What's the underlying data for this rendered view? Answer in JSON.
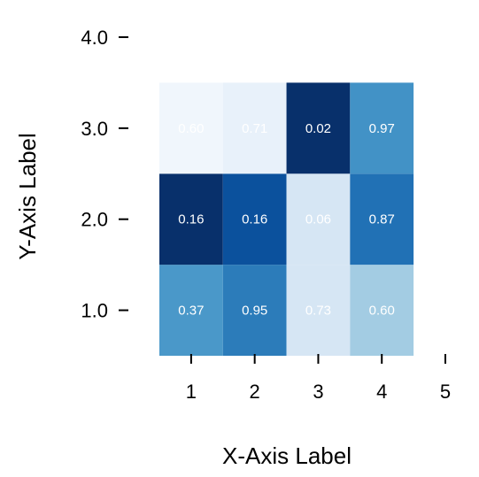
{
  "chart_data": {
    "type": "heatmap",
    "title": "",
    "xlabel": "X-Axis Label",
    "ylabel": "Y-Axis Label",
    "x_ticks": [
      "1",
      "2",
      "3",
      "4",
      "5"
    ],
    "y_ticks": [
      "1.0",
      "2.0",
      "3.0",
      "4.0"
    ],
    "xlim": [
      0.5,
      5
    ],
    "ylim": [
      0.5,
      4
    ],
    "x_categories": [
      1,
      2,
      3,
      4
    ],
    "y_categories": [
      1,
      2,
      3
    ],
    "values": [
      [
        0.37,
        0.95,
        0.73,
        0.6
      ],
      [
        0.16,
        0.16,
        0.06,
        0.87
      ],
      [
        0.6,
        0.71,
        0.02,
        0.97
      ]
    ],
    "value_labels": [
      [
        "0.37",
        "0.95",
        "0.73",
        "0.60"
      ],
      [
        "0.16",
        "0.16",
        "0.06",
        "0.87"
      ],
      [
        "0.60",
        "0.71",
        "0.02",
        "0.97"
      ]
    ],
    "cell_colors": [
      [
        "#4a98c9",
        "#2c7cba",
        "#d6e6f4",
        "#a3cce3"
      ],
      [
        "#08306b",
        "#0b519d",
        "#d6e6f4",
        "#2171b5"
      ],
      [
        "#f0f6fc",
        "#e8f1fa",
        "#08306b",
        "#4292c6"
      ]
    ],
    "colormap": "Blues",
    "grid": false,
    "legend": "none"
  }
}
